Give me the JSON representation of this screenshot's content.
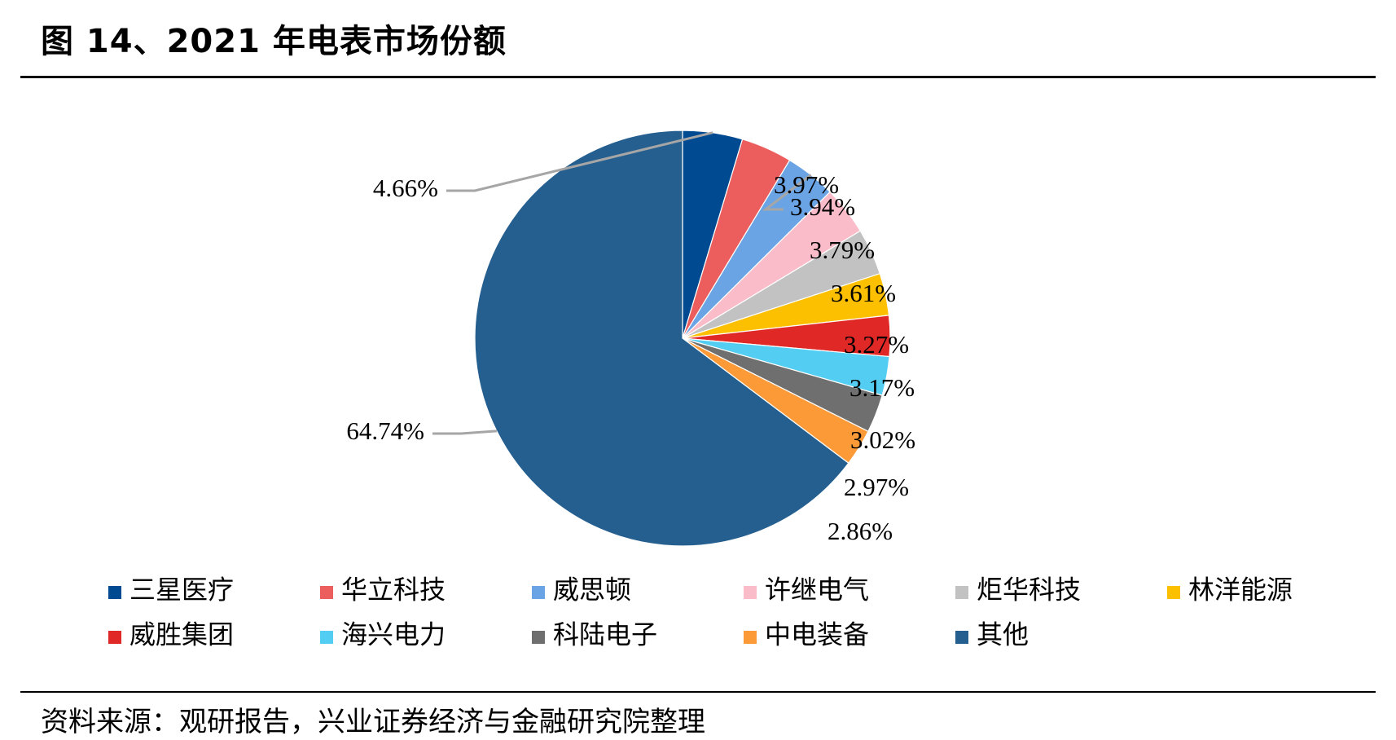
{
  "figure": {
    "title": "图 14、2021 年电表市场份额",
    "source": "资料来源：观研报告，兴业证券经济与金融研究院整理"
  },
  "chart_data": {
    "type": "pie",
    "title": "",
    "start_angle": "12 o'clock",
    "direction": "clockwise",
    "legend_position": "bottom",
    "slices": [
      {
        "name": "三星医疗",
        "value": 4.66,
        "label": "4.66%",
        "color": "#004a91"
      },
      {
        "name": "华立科技",
        "value": 3.97,
        "label": "3.97%",
        "color": "#ec5d5d"
      },
      {
        "name": "威思顿",
        "value": 3.94,
        "label": "3.94%",
        "color": "#6aa4e5"
      },
      {
        "name": "许继电气",
        "value": 3.79,
        "label": "3.79%",
        "color": "#fbbcc9"
      },
      {
        "name": "炬华科技",
        "value": 3.61,
        "label": "3.61%",
        "color": "#c2c2c2"
      },
      {
        "name": "林洋能源",
        "value": 3.27,
        "label": "3.27%",
        "color": "#fdc000"
      },
      {
        "name": "威胜集团",
        "value": 3.17,
        "label": "3.17%",
        "color": "#e02826"
      },
      {
        "name": "海兴电力",
        "value": 3.02,
        "label": "3.02%",
        "color": "#54cdf3"
      },
      {
        "name": "科陆电子",
        "value": 2.97,
        "label": "2.97%",
        "color": "#6f6f6f"
      },
      {
        "name": "中电装备",
        "value": 2.86,
        "label": "2.86%",
        "color": "#fc9a38"
      },
      {
        "name": "其他",
        "value": 64.74,
        "label": "64.74%",
        "color": "#255f8f"
      }
    ]
  }
}
